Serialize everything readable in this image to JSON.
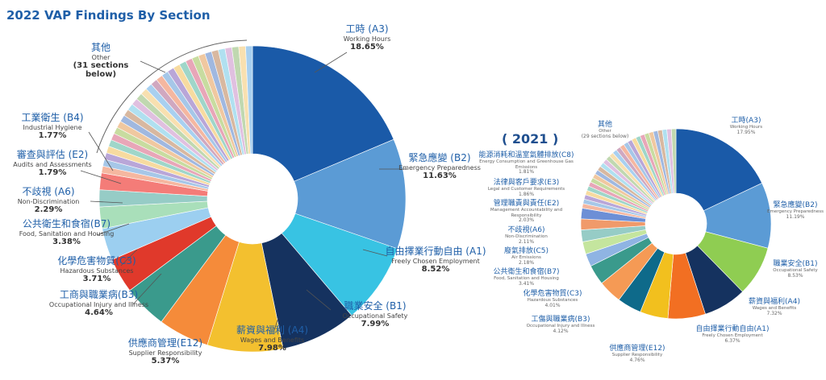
{
  "title": "2022 VAP Findings By Section",
  "chart_data": [
    {
      "type": "pie",
      "title": "2022 VAP Findings By Section",
      "donut": true,
      "slices": [
        {
          "zh": "工時 (A3)",
          "en": "Working Hours",
          "value": 18.65,
          "pct": "18.65%",
          "color": "#1a5aa8"
        },
        {
          "zh": "緊急應變 (B2)",
          "en": "Emergency Preparedness",
          "value": 11.63,
          "pct": "11.63%",
          "color": "#5b9bd5"
        },
        {
          "zh": "自由擇業行動自由 (A1)",
          "en": "Freely Chosen Employment",
          "value": 8.52,
          "pct": "8.52%",
          "color": "#38c3e3"
        },
        {
          "zh": "職業安全 (B1)",
          "en": "Occupational Safety",
          "value": 7.99,
          "pct": "7.99%",
          "color": "#15325f"
        },
        {
          "zh": "薪資與福利 (A4)",
          "en": "Wages and Benefits",
          "value": 7.98,
          "pct": "7.98%",
          "color": "#f3c02f"
        },
        {
          "zh": "供應商管理(E12)",
          "en": "Supplier Responsibility",
          "value": 5.37,
          "pct": "5.37%",
          "color": "#f58b3a"
        },
        {
          "zh": "工商與職業病(B3)",
          "en": "Occupational Injury and Illness",
          "value": 4.64,
          "pct": "4.64%",
          "color": "#3a9a8c"
        },
        {
          "zh": "化學危害物質(C3)",
          "en": "Hazardous Substances",
          "value": 3.71,
          "pct": "3.71%",
          "color": "#e0392b"
        },
        {
          "zh": "公共衛生和食宿(B7)",
          "en": "Food, Sanitation and Housing",
          "value": 3.38,
          "pct": "3.38%",
          "color": "#9ccff0"
        },
        {
          "zh": "不歧視 (A6)",
          "en": "Non-Discrimination",
          "value": 2.29,
          "pct": "2.29%",
          "color": "#a9dfba"
        },
        {
          "zh": "審查與評估 (E2)",
          "en": "Audits and Assessments",
          "value": 1.79,
          "pct": "1.79%",
          "color": "#96ccc6"
        },
        {
          "zh": "工業衛生 (B4)",
          "en": "Industrial Hygiene",
          "value": 1.77,
          "pct": "1.77%",
          "color": "#f47c78"
        }
      ],
      "other": {
        "zh": "其他",
        "en": "Other",
        "note": "(31 sections below)",
        "count": 31,
        "value": 22.28
      }
    },
    {
      "type": "pie",
      "title": "( 2021 )",
      "donut": true,
      "slices": [
        {
          "zh": "工時(A3)",
          "en": "Working Hours",
          "value": 17.95,
          "pct": "17.95%",
          "color": "#1a5aa8"
        },
        {
          "zh": "緊急應變(B2)",
          "en": "Emergency Preparedness",
          "value": 11.19,
          "pct": "11.19%",
          "color": "#5b9bd5"
        },
        {
          "zh": "職業安全(B1)",
          "en": "Occupational Safety",
          "value": 8.53,
          "pct": "8.53%",
          "color": "#8fcd52"
        },
        {
          "zh": "薪資與福利(A4)",
          "en": "Wages and Benefits",
          "value": 7.32,
          "pct": "7.32%",
          "color": "#15325f"
        },
        {
          "zh": "自由擇業行動自由(A1)",
          "en": "Freely Chosen Employment",
          "value": 6.37,
          "pct": "6.37%",
          "color": "#f26f22"
        },
        {
          "zh": "供應商管理(E12)",
          "en": "Supplier Responsibility",
          "value": 4.76,
          "pct": "4.76%",
          "color": "#f2c01e"
        },
        {
          "zh": "工傷與職業病(B3)",
          "en": "Occupational Injury and Illness",
          "value": 4.12,
          "pct": "4.12%",
          "color": "#0e6a8a"
        },
        {
          "zh": "化學危害物質(C3)",
          "en": "Hazardous Substances",
          "value": 4.01,
          "pct": "4.01%",
          "color": "#f59a55"
        },
        {
          "zh": "公共衛生和食宿(B7)",
          "en": "Food, Sanitation and Housing",
          "value": 3.41,
          "pct": "3.41%",
          "color": "#3a9a8c"
        },
        {
          "zh": "廢氣排放(C5)",
          "en": "Air Emissions",
          "value": 2.18,
          "pct": "2.18%",
          "color": "#8fb4e3"
        },
        {
          "zh": "不歧視(A6)",
          "en": "Non-Discrimination",
          "value": 2.11,
          "pct": "2.11%",
          "color": "#c4e59e"
        },
        {
          "zh": "管理職責與責任(E2)",
          "en": "Management Accountability and Responsibility",
          "value": 2.03,
          "pct": "2.03%",
          "color": "#96ccc6"
        },
        {
          "zh": "法律與客戶要求(E3)",
          "en": "Legal and Customer Requirements",
          "value": 1.86,
          "pct": "1.86%",
          "color": "#f09a6a"
        },
        {
          "zh": "能源消耗和溫室氣體排放(C8)",
          "en": "Energy Consumption and Greenhouse Gas Emissions",
          "value": 1.81,
          "pct": "1.81%",
          "color": "#6d8fd6"
        }
      ],
      "other": {
        "zh": "其他",
        "en": "Other",
        "note": "(29 sections below)",
        "count": 29,
        "value": 22.35
      }
    }
  ]
}
